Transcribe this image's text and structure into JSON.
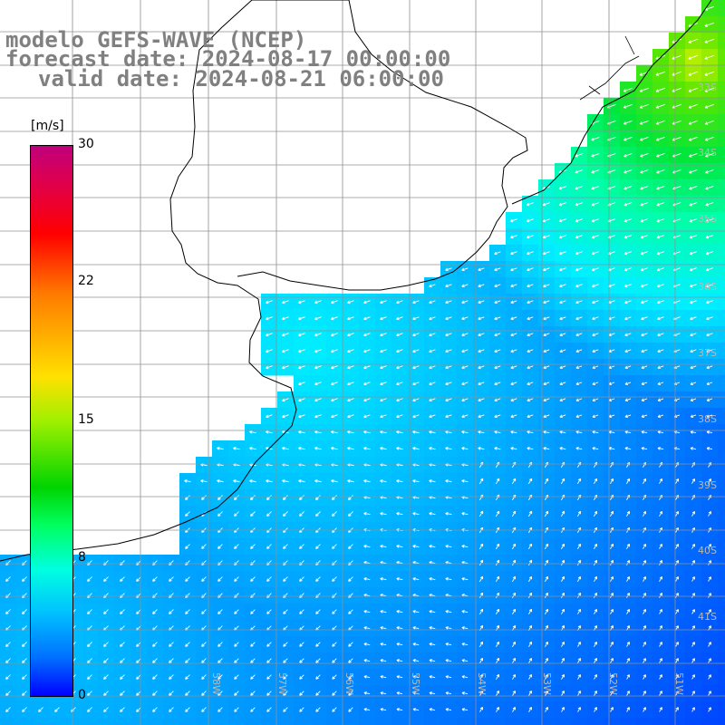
{
  "title": {
    "line1": "modelo GEFS-WAVE (NCEP)",
    "line2": "forecast date: 2024-08-17 00:00:00",
    "line3": "valid date: 2024-08-21 06:00:00"
  },
  "colorbar": {
    "unit": "[m/s]",
    "ticks": [
      {
        "label": "30",
        "value": 30
      },
      {
        "label": "22",
        "value": 22
      },
      {
        "label": "15",
        "value": 15
      },
      {
        "label": "8",
        "value": 8
      },
      {
        "label": "0",
        "value": 0
      }
    ],
    "colors": [
      "#c0007c",
      "#ff0000",
      "#ff7b00",
      "#ffe100",
      "#00d400",
      "#00ffe0",
      "#00c0ff",
      "#0000ff"
    ]
  },
  "map": {
    "lat_labels": [
      "33S",
      "34S",
      "35S",
      "36S",
      "37S",
      "38S",
      "39S",
      "40S",
      "41S"
    ],
    "lon_labels": [
      "58W",
      "57W",
      "56W",
      "55W",
      "54W",
      "53W",
      "52W",
      "51W"
    ],
    "land_color": "#ffffff",
    "arrow_color": "#ffffff",
    "coastline_color": "#000000",
    "grid_color": "#909090"
  }
}
